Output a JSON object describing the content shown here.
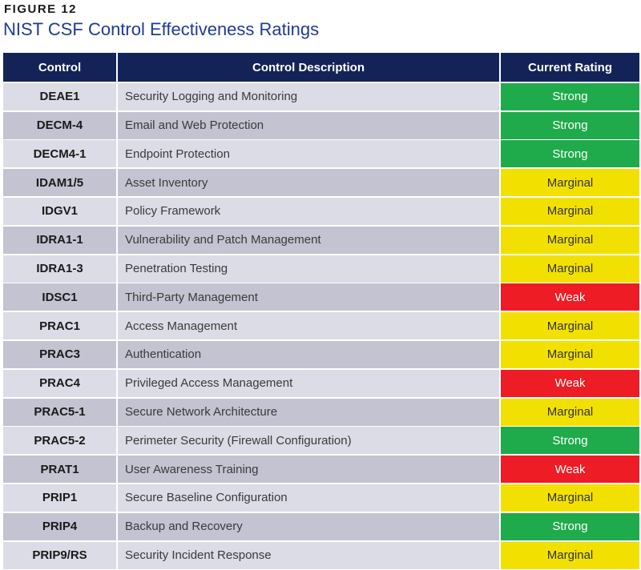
{
  "figure": {
    "label": "FIGURE 12",
    "title": "NIST CSF Control Effectiveness Ratings"
  },
  "table": {
    "headers": [
      "Control",
      "Control Description",
      "Current Rating"
    ],
    "rows": [
      {
        "code": "DEAE1",
        "description": "Security Logging and Monitoring",
        "rating": "Strong"
      },
      {
        "code": "DECM-4",
        "description": "Email and Web Protection",
        "rating": "Strong"
      },
      {
        "code": "DECM4-1",
        "description": "Endpoint Protection",
        "rating": "Strong"
      },
      {
        "code": "IDAM1/5",
        "description": "Asset Inventory",
        "rating": "Marginal"
      },
      {
        "code": "IDGV1",
        "description": "Policy Framework",
        "rating": "Marginal"
      },
      {
        "code": "IDRA1-1",
        "description": "Vulnerability and Patch Management",
        "rating": "Marginal"
      },
      {
        "code": "IDRA1-3",
        "description": "Penetration Testing",
        "rating": "Marginal"
      },
      {
        "code": "IDSC1",
        "description": "Third-Party Management",
        "rating": "Weak"
      },
      {
        "code": "PRAC1",
        "description": "Access Management",
        "rating": "Marginal"
      },
      {
        "code": "PRAC3",
        "description": "Authentication",
        "rating": "Marginal"
      },
      {
        "code": "PRAC4",
        "description": "Privileged Access Management",
        "rating": "Weak"
      },
      {
        "code": "PRAC5-1",
        "description": "Secure Network Architecture",
        "rating": "Marginal"
      },
      {
        "code": "PRAC5-2",
        "description": "Perimeter Security (Firewall Configuration)",
        "rating": "Strong"
      },
      {
        "code": "PRAT1",
        "description": "User Awareness Training",
        "rating": "Weak"
      },
      {
        "code": "PRIP1",
        "description": "Secure Baseline Configuration",
        "rating": "Marginal"
      },
      {
        "code": "PRIP4",
        "description": "Backup and Recovery",
        "rating": "Strong"
      },
      {
        "code": "PRIP9/RS",
        "description": "Security Incident Response",
        "rating": "Marginal"
      }
    ]
  },
  "colors": {
    "header_bg": "#142357",
    "title": "#1f3a93",
    "strong": "#1faa4b",
    "marginal": "#f2e100",
    "weak": "#ee1c24"
  }
}
